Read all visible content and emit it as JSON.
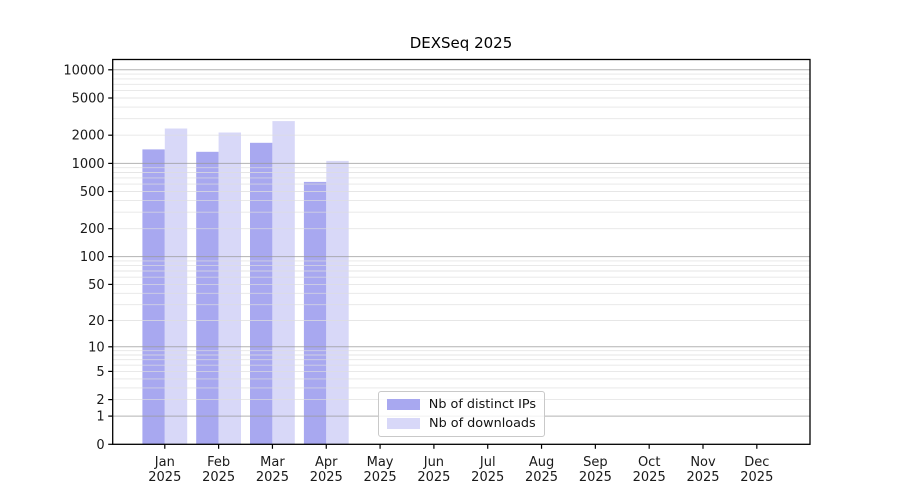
{
  "chart_data": {
    "type": "bar",
    "title": "DEXSeq 2025",
    "categories": [
      "Jan",
      "Feb",
      "Mar",
      "Apr",
      "May",
      "Jun",
      "Jul",
      "Aug",
      "Sep",
      "Oct",
      "Nov",
      "Dec"
    ],
    "x_year_label": "2025",
    "series": [
      {
        "name": "Nb of distinct IPs",
        "color": "#a8a8f0",
        "values": [
          1410,
          1330,
          1660,
          634,
          null,
          null,
          null,
          null,
          null,
          null,
          null,
          null
        ]
      },
      {
        "name": "Nb of downloads",
        "color": "#d8d8f8",
        "values": [
          2360,
          2140,
          2830,
          1063,
          null,
          null,
          null,
          null,
          null,
          null,
          null,
          null
        ]
      }
    ],
    "y_ticks": [
      0,
      1,
      2,
      5,
      10,
      20,
      50,
      100,
      200,
      500,
      1000,
      2000,
      5000,
      10000
    ],
    "y_scale": "log1p",
    "ylim": [
      0,
      12800
    ],
    "grid": true,
    "legend_position": "lower center"
  }
}
